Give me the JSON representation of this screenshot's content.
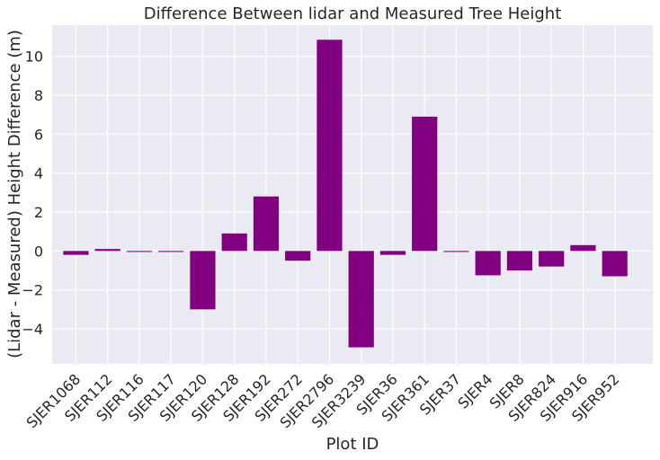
{
  "chart_data": {
    "type": "bar",
    "title": "Difference Between lidar and Measured Tree Height",
    "xlabel": "Plot ID",
    "ylabel": "(Lidar - Measured) Height Difference (m)",
    "categories": [
      "SJER1068",
      "SJER112",
      "SJER116",
      "SJER117",
      "SJER120",
      "SJER128",
      "SJER192",
      "SJER272",
      "SJER2796",
      "SJER3239",
      "SJER36",
      "SJER361",
      "SJER37",
      "SJER4",
      "SJER8",
      "SJER824",
      "SJER916",
      "SJER952"
    ],
    "values": [
      -0.2,
      0.1,
      -0.05,
      -0.05,
      -3.0,
      0.9,
      2.8,
      -0.5,
      10.85,
      -4.95,
      -0.2,
      6.9,
      -0.05,
      -1.25,
      -1.0,
      -0.8,
      0.3,
      -1.3
    ],
    "ylim": [
      -5.8,
      11.6
    ],
    "yticks": [
      -4,
      -2,
      0,
      2,
      4,
      6,
      8,
      10
    ],
    "ytick_labels": [
      "−4",
      "−2",
      "0",
      "2",
      "4",
      "6",
      "8",
      "10"
    ],
    "bar_color": "#800080",
    "background_color": "#eaeaf2",
    "grid": true
  }
}
